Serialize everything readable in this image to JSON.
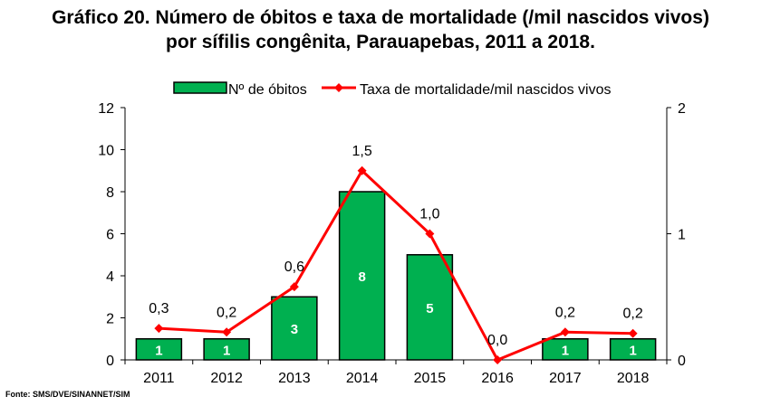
{
  "title_line1": "Gráfico 20. Número de óbitos e taxa de mortalidade (/mil nascidos vivos)",
  "title_line2": "por sífilis congênita, Parauapebas, 2011 a 2018.",
  "source": "Fonte: SMS/DVE/SINANNET/SIM",
  "chart_data": {
    "type": "bar",
    "categories": [
      "2011",
      "2012",
      "2013",
      "2014",
      "2015",
      "2016",
      "2017",
      "2018"
    ],
    "series": [
      {
        "name": "Nº de óbitos",
        "kind": "bar",
        "axis": "left",
        "values": [
          1,
          1,
          3,
          8,
          5,
          0,
          1,
          1
        ],
        "labels": [
          "1",
          "1",
          "3",
          "8",
          "5",
          "",
          "1",
          "1"
        ],
        "color": "#00b050"
      },
      {
        "name": "Taxa de mortalidade/mil nascidos vivos",
        "kind": "line",
        "axis": "right",
        "values": [
          0.25,
          0.22,
          0.58,
          1.5,
          1.0,
          0.0,
          0.22,
          0.21
        ],
        "labels": [
          "0,3",
          "0,2",
          "0,6",
          "1,5",
          "1,0",
          "0,0",
          "0,2",
          "0,2"
        ],
        "color": "#ff0000"
      }
    ],
    "ylim_left": [
      0,
      12
    ],
    "yticks_left": [
      "0",
      "2",
      "4",
      "6",
      "8",
      "10",
      "12"
    ],
    "ylim_right": [
      0,
      2
    ],
    "yticks_right": [
      "0",
      "1",
      "2"
    ],
    "legend_position": "top-center",
    "grid": false
  }
}
